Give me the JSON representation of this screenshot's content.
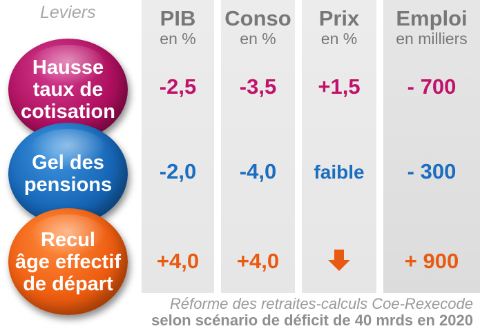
{
  "header": {
    "leviers": "Leviers",
    "columns": [
      {
        "title": "PIB",
        "unit": "en %"
      },
      {
        "title": "Conso",
        "unit": "en %"
      },
      {
        "title": "Prix",
        "unit": "en %"
      },
      {
        "title": "Emploi",
        "unit": "en milliers"
      }
    ]
  },
  "rows": [
    {
      "lever": [
        "Hausse",
        "taux de",
        "cotisation"
      ],
      "color": "#b0105f",
      "values": [
        "-2,5",
        "-3,5",
        "+1,5",
        "- 700"
      ]
    },
    {
      "lever": [
        "Gel des",
        "pensions"
      ],
      "color": "#1767b8",
      "values": [
        "-2,0",
        "-4,0",
        "faible",
        "- 300"
      ]
    },
    {
      "lever": [
        "Recul",
        "âge effectif",
        "de départ"
      ],
      "color": "#ee5d10",
      "values": [
        "+4,0",
        "+4,0",
        "",
        "+ 900"
      ],
      "prix_icon": "down-arrow-icon"
    }
  ],
  "caption": {
    "line1": "Réforme des retraites-calculs Coe-Rexecode",
    "line2": "selon scénario de déficit de 40 mrds en 2020"
  }
}
